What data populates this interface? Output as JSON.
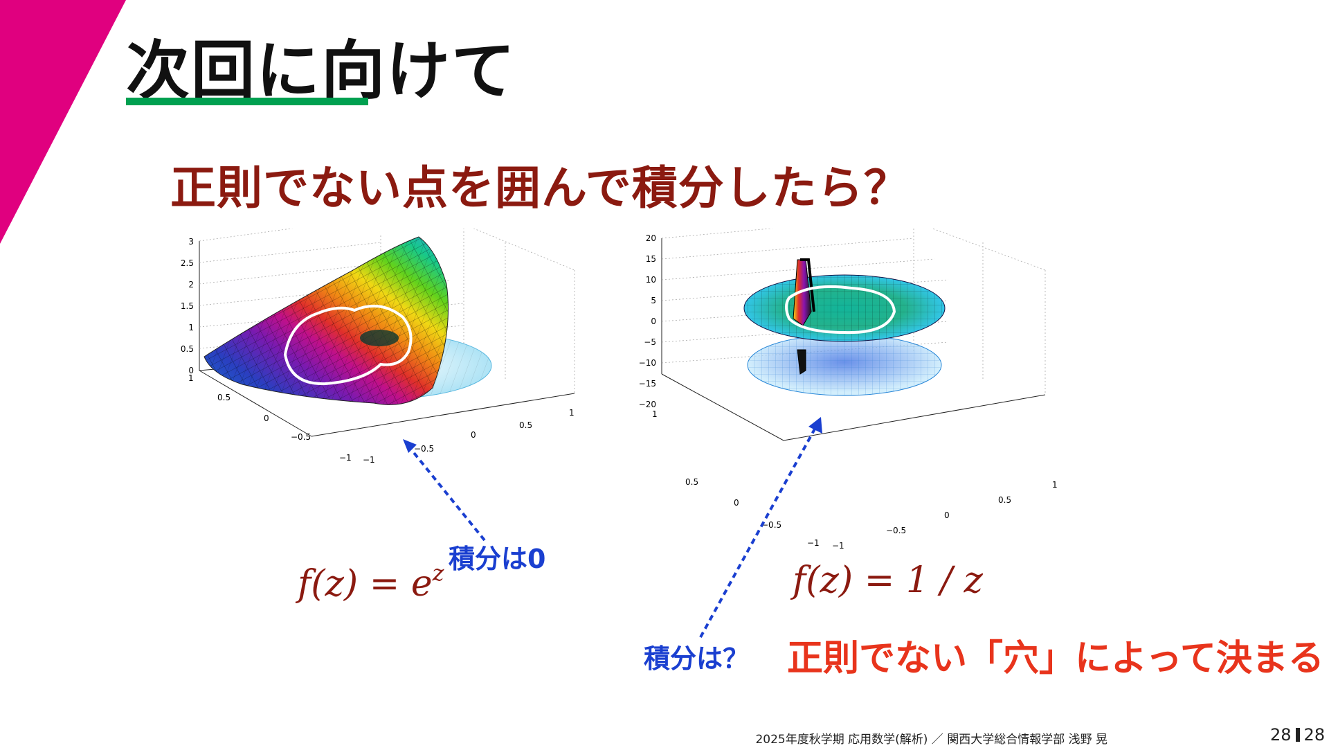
{
  "slide": {
    "title": "次回に向けて",
    "subtitle": "正則でない点を囲んで積分したら？",
    "conclusion": "正則でない「穴」によって決まる",
    "footer": "2025年度秋学期 応用数学(解析) ／ 関西大学総合情報学部 浅野 晃",
    "page_current": "28",
    "page_total": "28"
  },
  "left_plot": {
    "formula_lhs": "f(z) = e",
    "formula_sup": "z",
    "callout": "積分は0",
    "z_ticks": [
      "0",
      "0.5",
      "1",
      "1.5",
      "2",
      "2.5",
      "3"
    ],
    "y_ticks": [
      "1",
      "0.5",
      "0",
      "−0.5",
      "−1"
    ],
    "x_ticks": [
      "−1",
      "−0.5",
      "0",
      "0.5",
      "1"
    ]
  },
  "right_plot": {
    "formula": "f(z) = 1 / z",
    "callout": "積分は？",
    "z_ticks": [
      "20",
      "15",
      "10",
      "5",
      "0",
      "−5",
      "−10",
      "−15",
      "−20"
    ],
    "y_ticks": [
      "1",
      "0.5",
      "0",
      "−0.5",
      "−1"
    ],
    "x_ticks": [
      "−1",
      "−0.5",
      "0",
      "0.5",
      "1"
    ]
  },
  "colors": {
    "accent_magenta": "#e0007f",
    "underline_green": "#00a050",
    "subtitle_dark_red": "#8b1a10",
    "formula_dark_red": "#8b1a10",
    "callout_blue": "#1a3fd0",
    "conclusion_red": "#e8341c"
  },
  "icons": {
    "left_plot": "surface-plot-exp",
    "right_plot": "surface-plot-reciprocal"
  }
}
